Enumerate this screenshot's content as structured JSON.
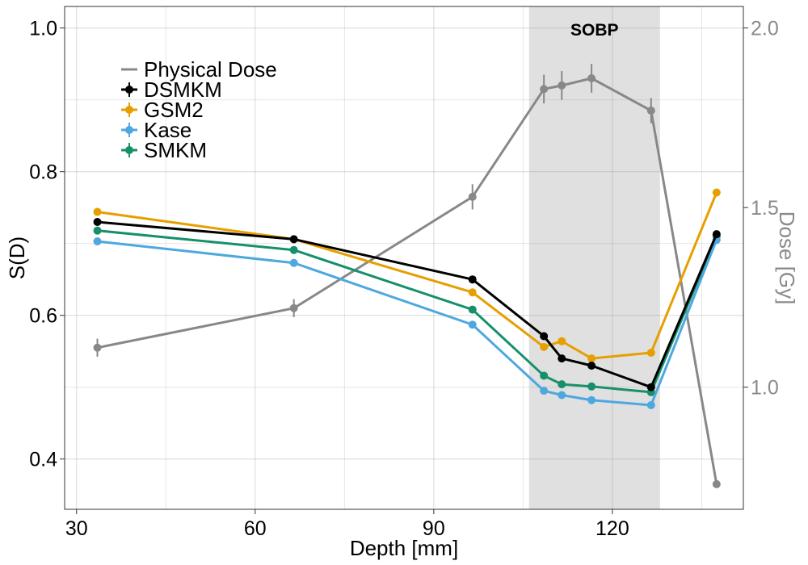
{
  "chart_data": {
    "type": "line",
    "title": "",
    "xlabel": "Depth [mm]",
    "ylabel": "S(D)",
    "y2label": "Dose [Gy]",
    "xlim": [
      28,
      142
    ],
    "ylim": [
      0.33,
      1.03
    ],
    "y2lim": [
      0.66,
      2.06
    ],
    "xticks": [
      30,
      60,
      90,
      120
    ],
    "yticks": [
      0.4,
      0.6,
      0.8,
      1.0
    ],
    "yticklabels": [
      "0.4",
      "0.6",
      "0.8",
      "1.0"
    ],
    "y2ticks": [
      1.0,
      1.5,
      2.0
    ],
    "y2ticklabels": [
      "1.0",
      "1.5",
      "2.0"
    ],
    "grid": true,
    "shaded_region": {
      "label": "SOBP",
      "x_start": 106,
      "x_end": 128,
      "color": "#e0e0e0"
    },
    "legend": {
      "placement": "top-left",
      "entries": [
        "Physical Dose",
        "DSMKM",
        "GSM2",
        "Kase",
        "SMKM"
      ]
    },
    "x": [
      33.5,
      66.5,
      96.5,
      108.5,
      111.5,
      116.5,
      126.5,
      137.5
    ],
    "series": [
      {
        "name": "DSMKM",
        "axis": "left",
        "color": "#000000",
        "values": [
          0.73,
          0.706,
          0.65,
          0.571,
          0.54,
          0.53,
          0.5,
          0.713
        ],
        "errors": [
          0.004,
          0.004,
          0.004,
          0.004,
          0.004,
          0.004,
          0.004,
          0.004
        ]
      },
      {
        "name": "GSM2",
        "axis": "left",
        "color": "#E69F00",
        "values": [
          0.744,
          0.706,
          0.632,
          0.556,
          0.564,
          0.54,
          0.548,
          0.771
        ],
        "errors": [
          0.004,
          0.004,
          0.004,
          0.004,
          0.004,
          0.004,
          0.004,
          0.004
        ]
      },
      {
        "name": "Kase",
        "axis": "left",
        "color": "#4EA8E0",
        "values": [
          0.703,
          0.673,
          0.587,
          0.495,
          0.489,
          0.482,
          0.475,
          0.705
        ],
        "errors": [
          0.004,
          0.004,
          0.004,
          0.004,
          0.004,
          0.004,
          0.004,
          0.004
        ]
      },
      {
        "name": "SMKM",
        "axis": "left",
        "color": "#16906B",
        "values": [
          0.718,
          0.691,
          0.608,
          0.516,
          0.504,
          0.501,
          0.493,
          0.71
        ],
        "errors": [
          0.004,
          0.004,
          0.004,
          0.004,
          0.004,
          0.004,
          0.004,
          0.004
        ]
      },
      {
        "name": "Physical Dose",
        "axis": "right",
        "color": "#888888",
        "values": [
          1.11,
          1.22,
          1.53,
          1.83,
          1.84,
          1.86,
          1.77,
          0.73
        ],
        "errors": [
          0.025,
          0.025,
          0.035,
          0.04,
          0.04,
          0.04,
          0.035,
          0.01
        ]
      }
    ]
  }
}
